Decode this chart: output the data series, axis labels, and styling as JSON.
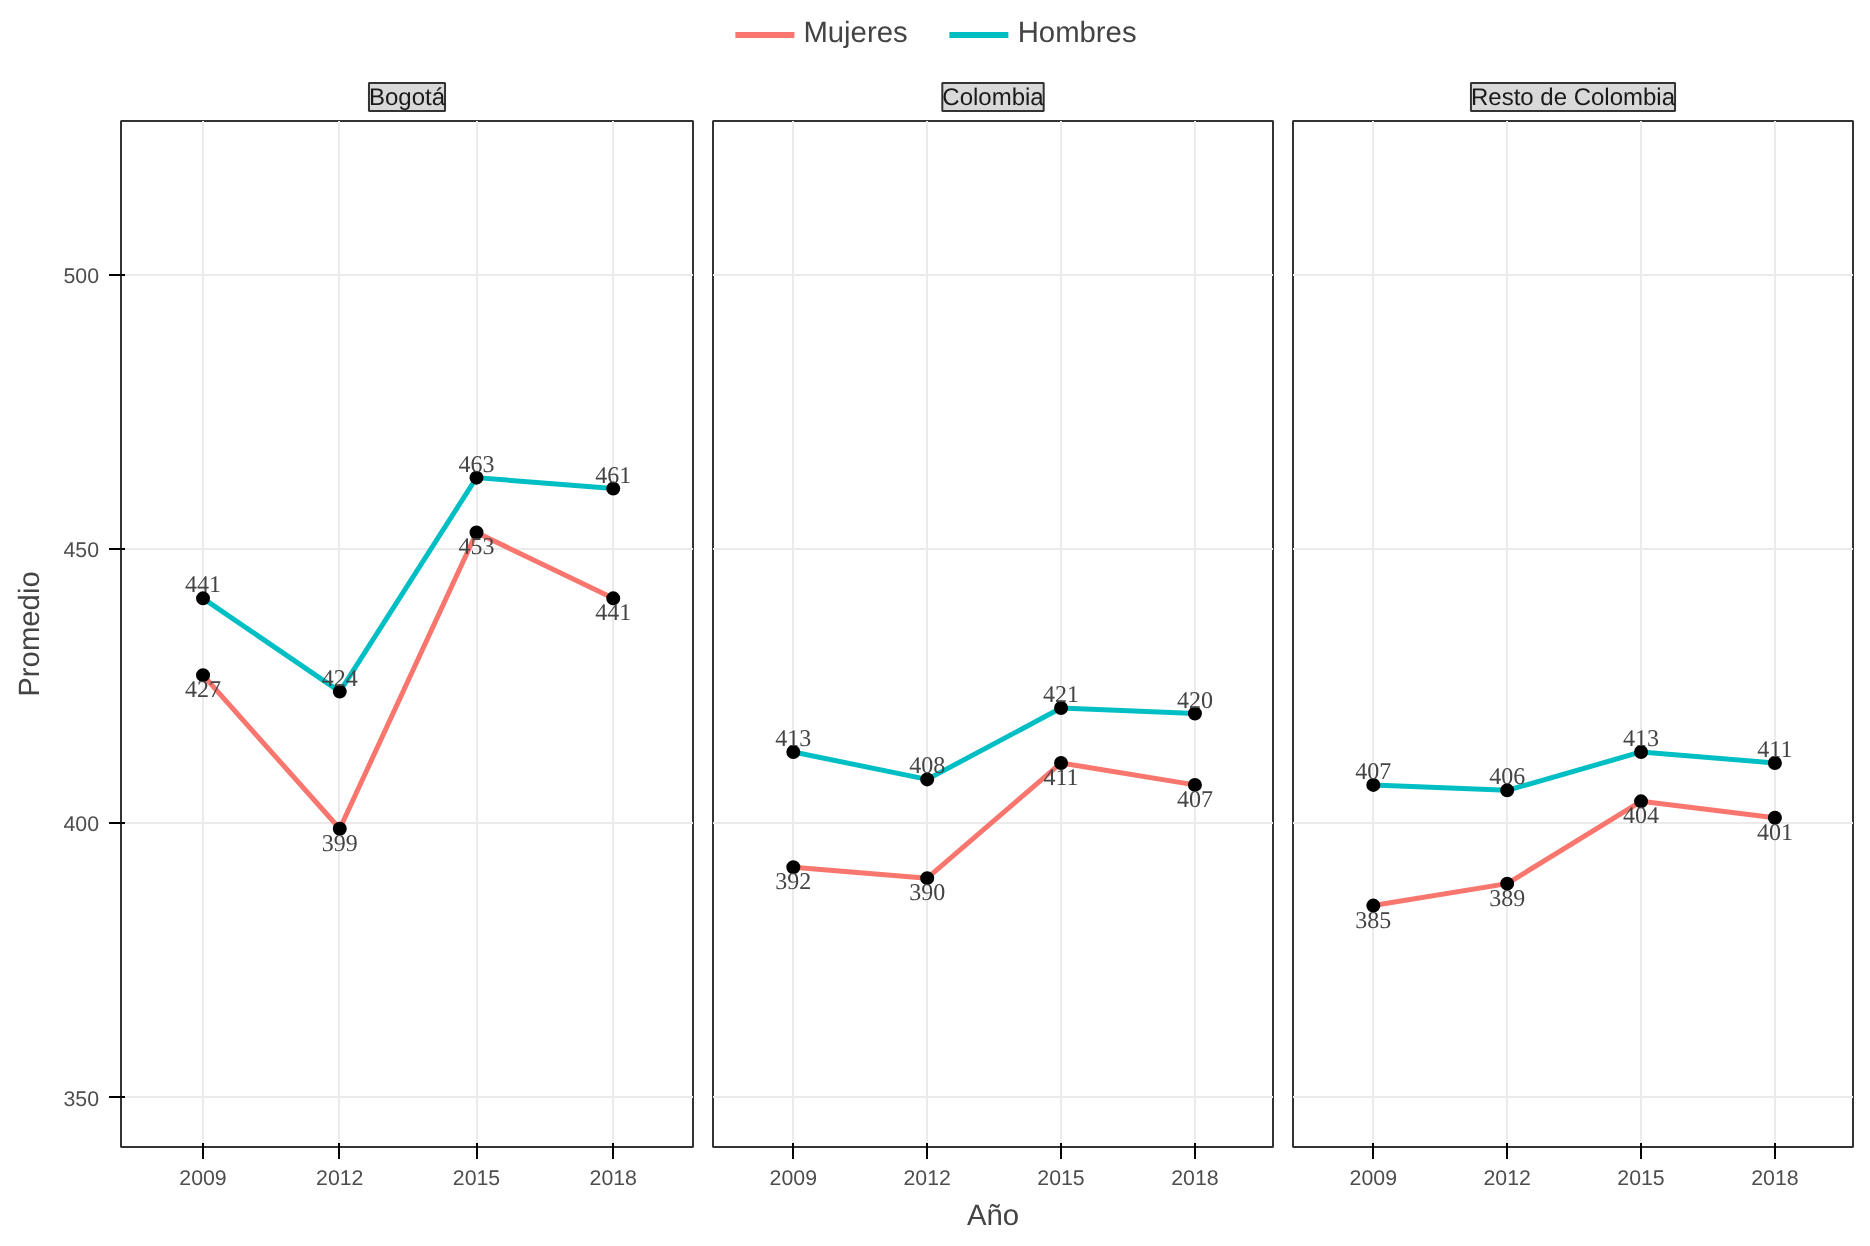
{
  "chart_data": [
    {
      "type": "line",
      "title": "Bogotá",
      "ylabel": "Promedio",
      "x": [
        2009,
        2012,
        2015,
        2018
      ],
      "xlim": [
        2007.2,
        2019.75
      ],
      "xticks": [
        2009,
        2012,
        2015,
        2018
      ],
      "ylim": [
        341,
        528
      ],
      "yticks": [
        350,
        400,
        450,
        500
      ],
      "grid": true,
      "marker": "circle",
      "data_labels": true,
      "legend": "top",
      "series": [
        {
          "name": "Mujeres",
          "color": "#f8766d",
          "values": [
            427,
            399,
            453,
            441
          ]
        },
        {
          "name": "Hombres",
          "color": "#00bfc4",
          "values": [
            441,
            424,
            463,
            461
          ]
        }
      ]
    },
    {
      "type": "line",
      "title": "Colombia",
      "xlabel": "Año",
      "x": [
        2009,
        2012,
        2015,
        2018
      ],
      "xlim": [
        2007.2,
        2019.75
      ],
      "xticks": [
        2009,
        2012,
        2015,
        2018
      ],
      "ylim": [
        341,
        528
      ],
      "yticks": [
        350,
        400,
        450,
        500
      ],
      "grid": true,
      "marker": "circle",
      "data_labels": true,
      "legend": "top",
      "tick_labels": "x",
      "series": [
        {
          "name": "Mujeres",
          "color": "#f8766d",
          "values": [
            392,
            390,
            411,
            407
          ]
        },
        {
          "name": "Hombres",
          "color": "#00bfc4",
          "values": [
            413,
            408,
            421,
            420
          ]
        }
      ]
    },
    {
      "type": "line",
      "title": "Resto de Colombia",
      "x": [
        2009,
        2012,
        2015,
        2018
      ],
      "xlim": [
        2007.2,
        2019.75
      ],
      "xticks": [
        2009,
        2012,
        2015,
        2018
      ],
      "ylim": [
        341,
        528
      ],
      "yticks": [
        350,
        400,
        450,
        500
      ],
      "grid": true,
      "marker": "circle",
      "data_labels": true,
      "legend": "top",
      "tick_labels": "x",
      "series": [
        {
          "name": "Mujeres",
          "color": "#f8766d",
          "values": [
            385,
            389,
            404,
            401
          ]
        },
        {
          "name": "Hombres",
          "color": "#00bfc4",
          "values": [
            407,
            406,
            413,
            411
          ]
        }
      ]
    }
  ]
}
